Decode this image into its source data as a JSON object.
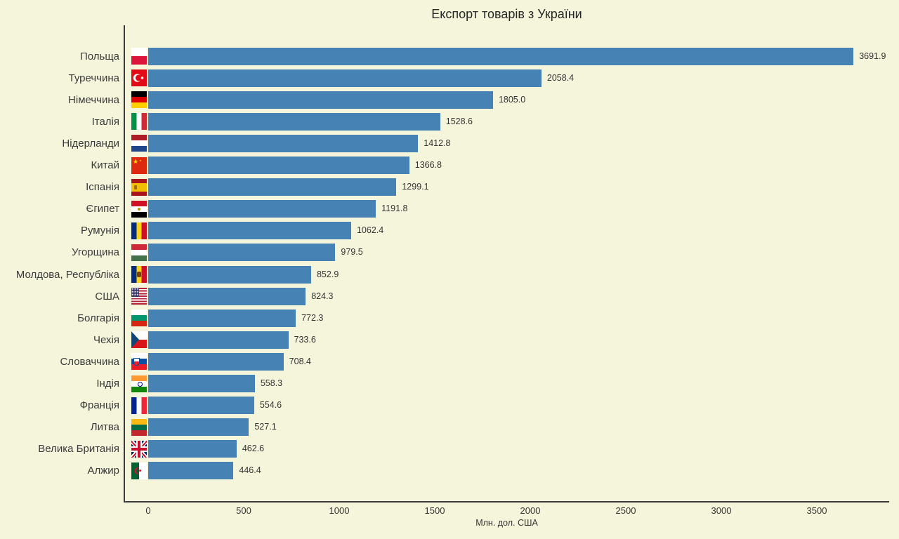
{
  "colors": {
    "background": "#F5F5DC",
    "bar": "#4682B4",
    "text": "#333333",
    "spine": "#3B3B3B"
  },
  "chart_data": {
    "type": "bar",
    "orientation": "horizontal",
    "title": "Експорт товарів з України",
    "xlabel": "Млн. дол. США",
    "ylabel": "",
    "grid": false,
    "legend": "none",
    "xlim": [
      0,
      3880
    ],
    "xticks": [
      0,
      500,
      1000,
      1500,
      2000,
      2500,
      3000,
      3500
    ],
    "categories": [
      "Польща",
      "Туреччина",
      "Німеччина",
      "Італія",
      "Нідерланди",
      "Китай",
      "Іспанія",
      "Єгипет",
      "Румунія",
      "Угорщина",
      "Молдова, Республіка",
      "США",
      "Болгарія",
      "Чехія",
      "Словаччина",
      "Індія",
      "Франція",
      "Литва",
      "Велика Британія",
      "Алжир"
    ],
    "values": [
      3691.9,
      2058.4,
      1805.0,
      1528.6,
      1412.8,
      1366.8,
      1299.1,
      1191.8,
      1062.4,
      979.5,
      852.9,
      824.3,
      772.3,
      733.6,
      708.4,
      558.3,
      554.6,
      527.1,
      462.6,
      446.4
    ],
    "value_labels": [
      "3691.9",
      "2058.4",
      "1805.0",
      "1528.6",
      "1412.8",
      "1366.8",
      "1299.1",
      "1191.8",
      "1062.4",
      "979.5",
      "852.9",
      "824.3",
      "772.3",
      "733.6",
      "708.4",
      "558.3",
      "554.6",
      "527.1",
      "462.6",
      "446.4"
    ],
    "flag_icons": [
      "flag-poland",
      "flag-turkey",
      "flag-germany",
      "flag-italy",
      "flag-netherlands",
      "flag-china",
      "flag-spain",
      "flag-egypt",
      "flag-romania",
      "flag-hungary",
      "flag-moldova",
      "flag-usa",
      "flag-bulgaria",
      "flag-czechia",
      "flag-slovakia",
      "flag-india",
      "flag-france",
      "flag-lithuania",
      "flag-uk",
      "flag-algeria"
    ]
  }
}
